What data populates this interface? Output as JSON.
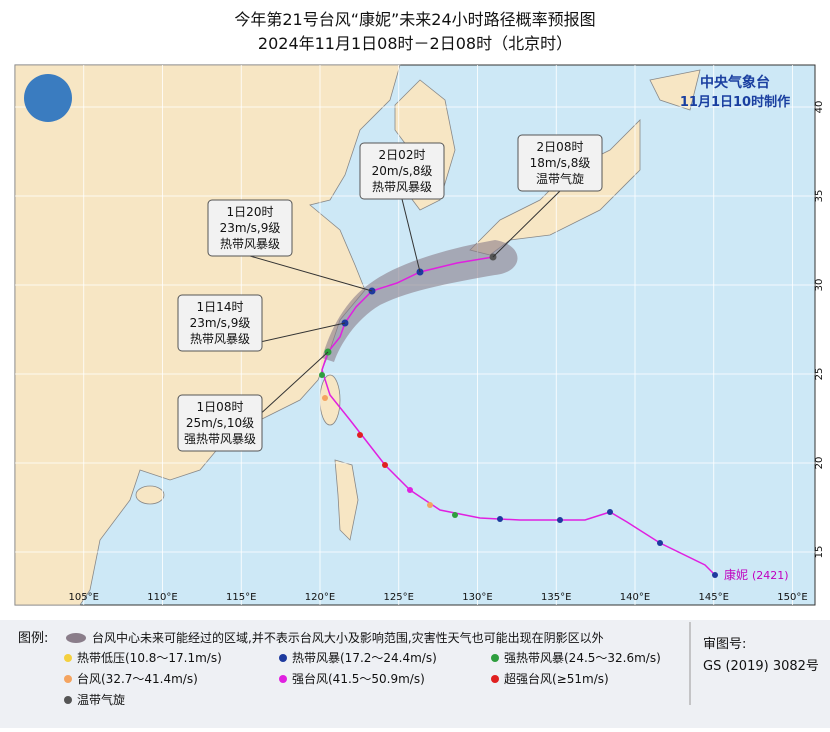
{
  "header": {
    "title": "今年第21号台风“康妮”未来24小时路径概率预报图",
    "subtitle": "2024年11月1日08时－2日08时（北京时）"
  },
  "agency": {
    "name": "中央气象台",
    "issued": "11月1日10时制作"
  },
  "map": {
    "longitudes": [
      {
        "value": 105,
        "label": "105°E"
      },
      {
        "value": 110,
        "label": "110°E"
      },
      {
        "value": 115,
        "label": "115°E"
      },
      {
        "value": 120,
        "label": "120°E"
      },
      {
        "value": 125,
        "label": "125°E"
      },
      {
        "value": 130,
        "label": "130°E"
      },
      {
        "value": 135,
        "label": "135°E"
      },
      {
        "value": 140,
        "label": "140°E"
      },
      {
        "value": 145,
        "label": "145°E"
      },
      {
        "value": 150,
        "label": "150°E"
      }
    ],
    "latitudes": [
      15,
      20,
      25,
      30,
      35,
      40
    ]
  },
  "callouts": [
    {
      "time": "1日08时",
      "wind": "25m/s,10级",
      "level": "强热带风暴级"
    },
    {
      "time": "1日14时",
      "wind": "23m/s,9级",
      "level": "热带风暴级"
    },
    {
      "time": "1日20时",
      "wind": "23m/s,9级",
      "level": "热带风暴级"
    },
    {
      "time": "2日02时",
      "wind": "20m/s,8级",
      "level": "热带风暴级"
    },
    {
      "time": "2日08时",
      "wind": "18m/s,8级",
      "level": "温带气旋"
    }
  ],
  "typhoon": {
    "name": "康妮",
    "code": "(2421)"
  },
  "legend": {
    "title": "图例:",
    "cone": "台风中心未来可能经过的区域,并不表示台风大小及影响范围,灾害性天气也可能出现在阴影区以外",
    "items": [
      "热带低压(10.8～17.1m/s)",
      "热带风暴(17.2～24.4m/s)",
      "强热带风暴(24.5～32.6m/s)",
      "台风(32.7～41.4m/s)",
      "强台风(41.5～50.9m/s)",
      "超强台风(≥51m/s)",
      "温带气旋"
    ]
  },
  "approval": {
    "label": "审图号:",
    "number": "GS (2019) 3082号"
  }
}
